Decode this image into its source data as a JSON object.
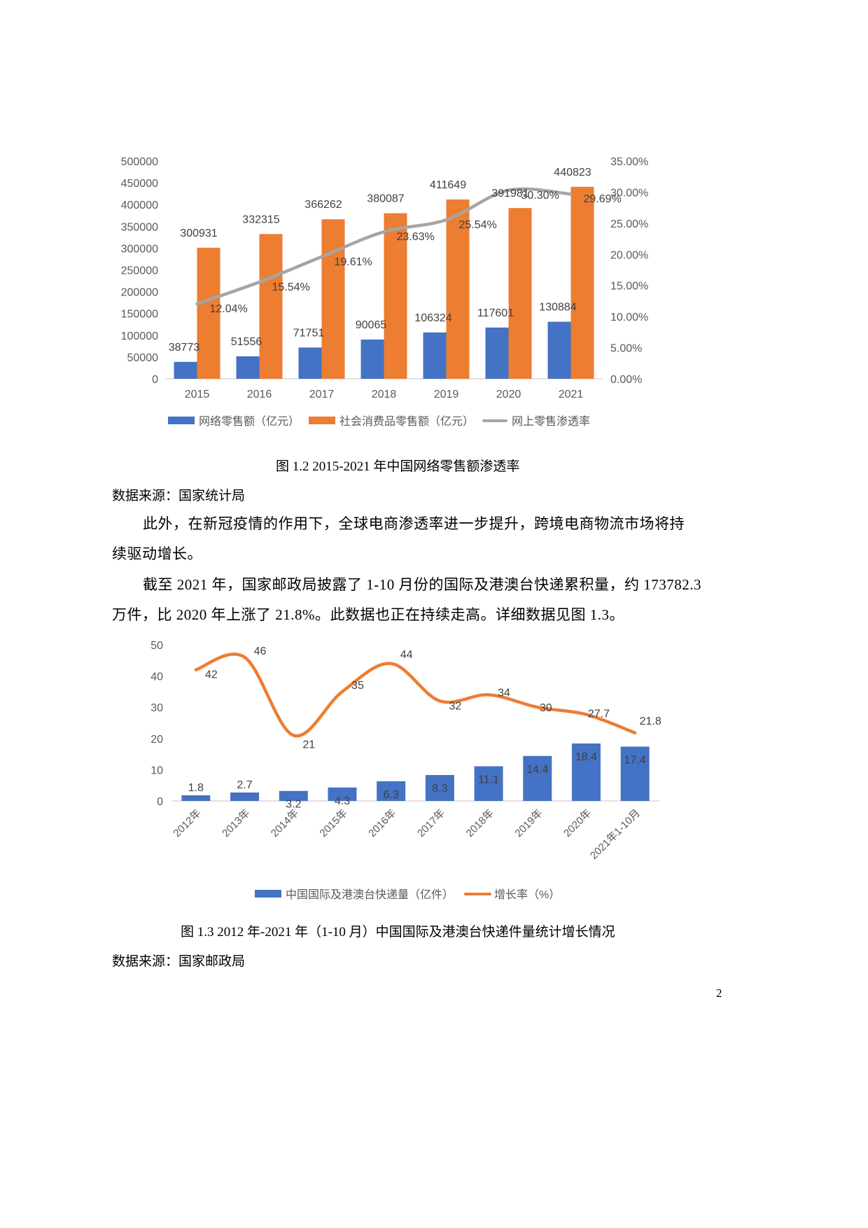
{
  "figure_1_2": {
    "caption": "图  1.2    2015-2021 年中国网络零售额渗透率",
    "source": "数据来源：国家统计局"
  },
  "paragraph_1": {
    "line1": "此外，在新冠疫情的作用下，全球电商渗透率进一步提升，跨境电商物流市场将持",
    "line2": "续驱动增长。"
  },
  "paragraph_2": {
    "line1": "截至 2021 年，国家邮政局披露了 1-10 月份的国际及港澳台快递累积量，约 173782.3",
    "line2": "万件，比 2020 年上涨了 21.8%。此数据也正在持续走高。详细数据见图  1.3。"
  },
  "figure_1_3": {
    "caption": "图  1.3 2012 年-2021 年（1-10 月）中国国际及港澳台快递件量统计增长情况",
    "source": "数据来源：国家邮政局"
  },
  "page_number": "2",
  "colors": {
    "blue": "#4472C4",
    "orange": "#ED7D31",
    "gray": "#A5A5A5",
    "axis_text": "#595959",
    "label_text": "#404040"
  },
  "chart_data": [
    {
      "type": "bar",
      "title": "2015-2021 年中国网络零售额渗透率",
      "categories": [
        "2015",
        "2016",
        "2017",
        "2018",
        "2019",
        "2020",
        "2021"
      ],
      "series": [
        {
          "name": "网络零售额（亿元）",
          "type": "bar",
          "axis": "left",
          "color": "#4472C4",
          "values": [
            38773,
            51556,
            71751,
            90065,
            106324,
            117601,
            130884
          ]
        },
        {
          "name": "社会消费品零售额（亿元）",
          "type": "bar",
          "axis": "left",
          "color": "#ED7D31",
          "values": [
            300931,
            332315,
            366262,
            380087,
            411649,
            391981,
            440823
          ]
        },
        {
          "name": "网上零售渗透率",
          "type": "line",
          "axis": "right",
          "color": "#A5A5A5",
          "values": [
            12.04,
            15.54,
            19.61,
            23.63,
            25.54,
            30.3,
            29.69
          ],
          "labels": [
            "12.04%",
            "15.54%",
            "19.61%",
            "23.63%",
            "25.54%",
            "30.30%",
            "29.69%"
          ]
        }
      ],
      "ylim_left": [
        0,
        500000
      ],
      "yticks_left": [
        "500000",
        "450000",
        "400000",
        "350000",
        "300000",
        "250000",
        "200000",
        "150000",
        "100000",
        "50000",
        "0"
      ],
      "ylim_right": [
        0,
        35
      ],
      "yticks_right": [
        "35.00%",
        "30.00%",
        "25.00%",
        "20.00%",
        "15.00%",
        "10.00%",
        "5.00%",
        "0.00%"
      ],
      "xlabel": "",
      "ylabel": "",
      "grid": false,
      "legend_position": "bottom",
      "legend": [
        "网络零售额（亿元）",
        "社会消费品零售额（亿元）",
        "网上零售渗透率"
      ]
    },
    {
      "type": "bar",
      "title": "2012 年-2021 年（1-10 月）中国国际及港澳台快递件量统计增长情况",
      "categories": [
        "2012年",
        "2013年",
        "2014年",
        "2015年",
        "2016年",
        "2017年",
        "2018年",
        "2019年",
        "2020年",
        "2021年1-10月"
      ],
      "series": [
        {
          "name": "中国国际及港澳台快递量（亿件）",
          "type": "bar",
          "color": "#4472C4",
          "values": [
            1.8,
            2.7,
            3.2,
            4.3,
            6.3,
            8.3,
            11.1,
            14.4,
            18.4,
            17.4
          ],
          "labels": [
            "1.8",
            "2.7",
            "3.2",
            "4.3",
            "6.3",
            "8.3",
            "11.1",
            "14.4",
            "18.4",
            "17.4"
          ]
        },
        {
          "name": "增长率（%）",
          "type": "line",
          "color": "#ED7D31",
          "values": [
            42,
            46,
            21,
            35,
            44,
            32,
            34,
            30,
            27.7,
            21.8
          ],
          "labels": [
            "42",
            "46",
            "21",
            "35",
            "44",
            "32",
            "34",
            "30",
            "27.7",
            "21.8"
          ]
        }
      ],
      "ylim": [
        0,
        50
      ],
      "yticks": [
        "50",
        "40",
        "30",
        "20",
        "10",
        "0"
      ],
      "xlabel": "",
      "ylabel": "",
      "grid": false,
      "legend_position": "bottom",
      "legend": [
        "中国国际及港澳台快递量（亿件）",
        "增长率（%）"
      ]
    }
  ]
}
